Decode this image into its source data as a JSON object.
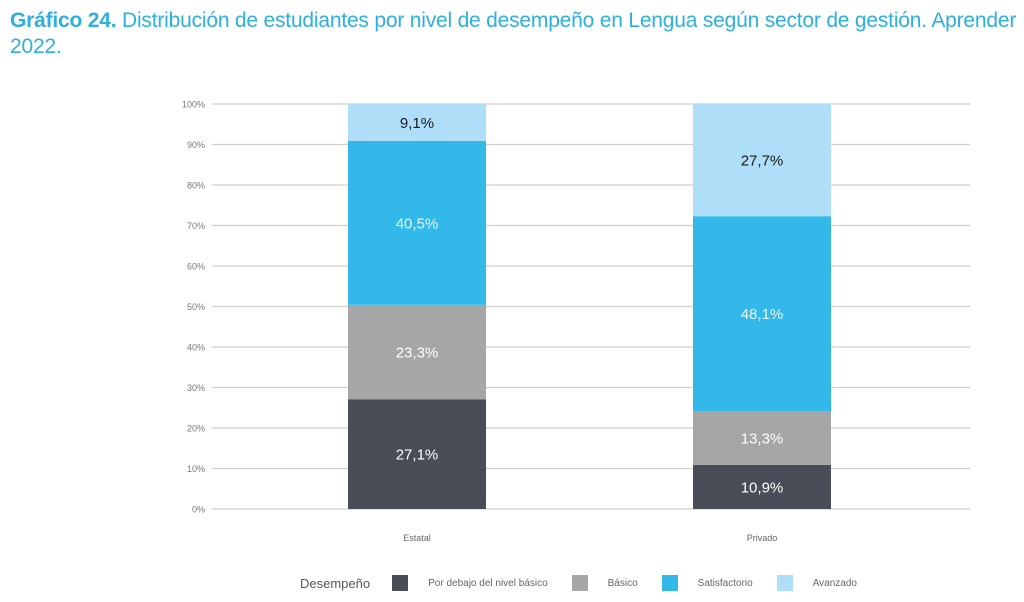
{
  "title": {
    "bold": "Gráfico 24.",
    "text": " Distribución de estudiantes por nivel de desempeño en Lengua según sector de gestión. Aprender 2022."
  },
  "chart_data": {
    "type": "bar",
    "stacked": true,
    "title": "Gráfico 24. Distribución de estudiantes por nivel de desempeño en Lengua según sector de gestión. Aprender 2022.",
    "xlabel": "",
    "ylabel": "",
    "ylim": [
      0,
      100
    ],
    "yticks": [
      "0%",
      "10%",
      "20%",
      "30%",
      "40%",
      "50%",
      "60%",
      "70%",
      "80%",
      "90%",
      "100%"
    ],
    "grid": true,
    "categories": [
      "Estatal",
      "Privado"
    ],
    "legend_title": "Desempeño",
    "legend_position": "bottom",
    "series": [
      {
        "name": "Por debajo del nivel básico",
        "color": "#4a4c57",
        "label_color": "#ffffff",
        "values": [
          27.1,
          10.9
        ],
        "labels": [
          "27,1%",
          "10,9%"
        ]
      },
      {
        "name": "Básico",
        "color": "#a6a6a6",
        "label_color": "#ffffff",
        "values": [
          23.3,
          13.3
        ],
        "labels": [
          "23,3%",
          "13,3%"
        ]
      },
      {
        "name": "Satisfactorio",
        "color": "#33b8ea",
        "label_color": "#e8f7fd",
        "values": [
          40.5,
          48.1
        ],
        "labels": [
          "40,5%",
          "48,1%"
        ]
      },
      {
        "name": "Avanzado",
        "color": "#afdef8",
        "label_color": "#1a1a1a",
        "values": [
          9.1,
          27.7
        ],
        "labels": [
          "9,1%",
          "27,7%"
        ]
      }
    ]
  }
}
